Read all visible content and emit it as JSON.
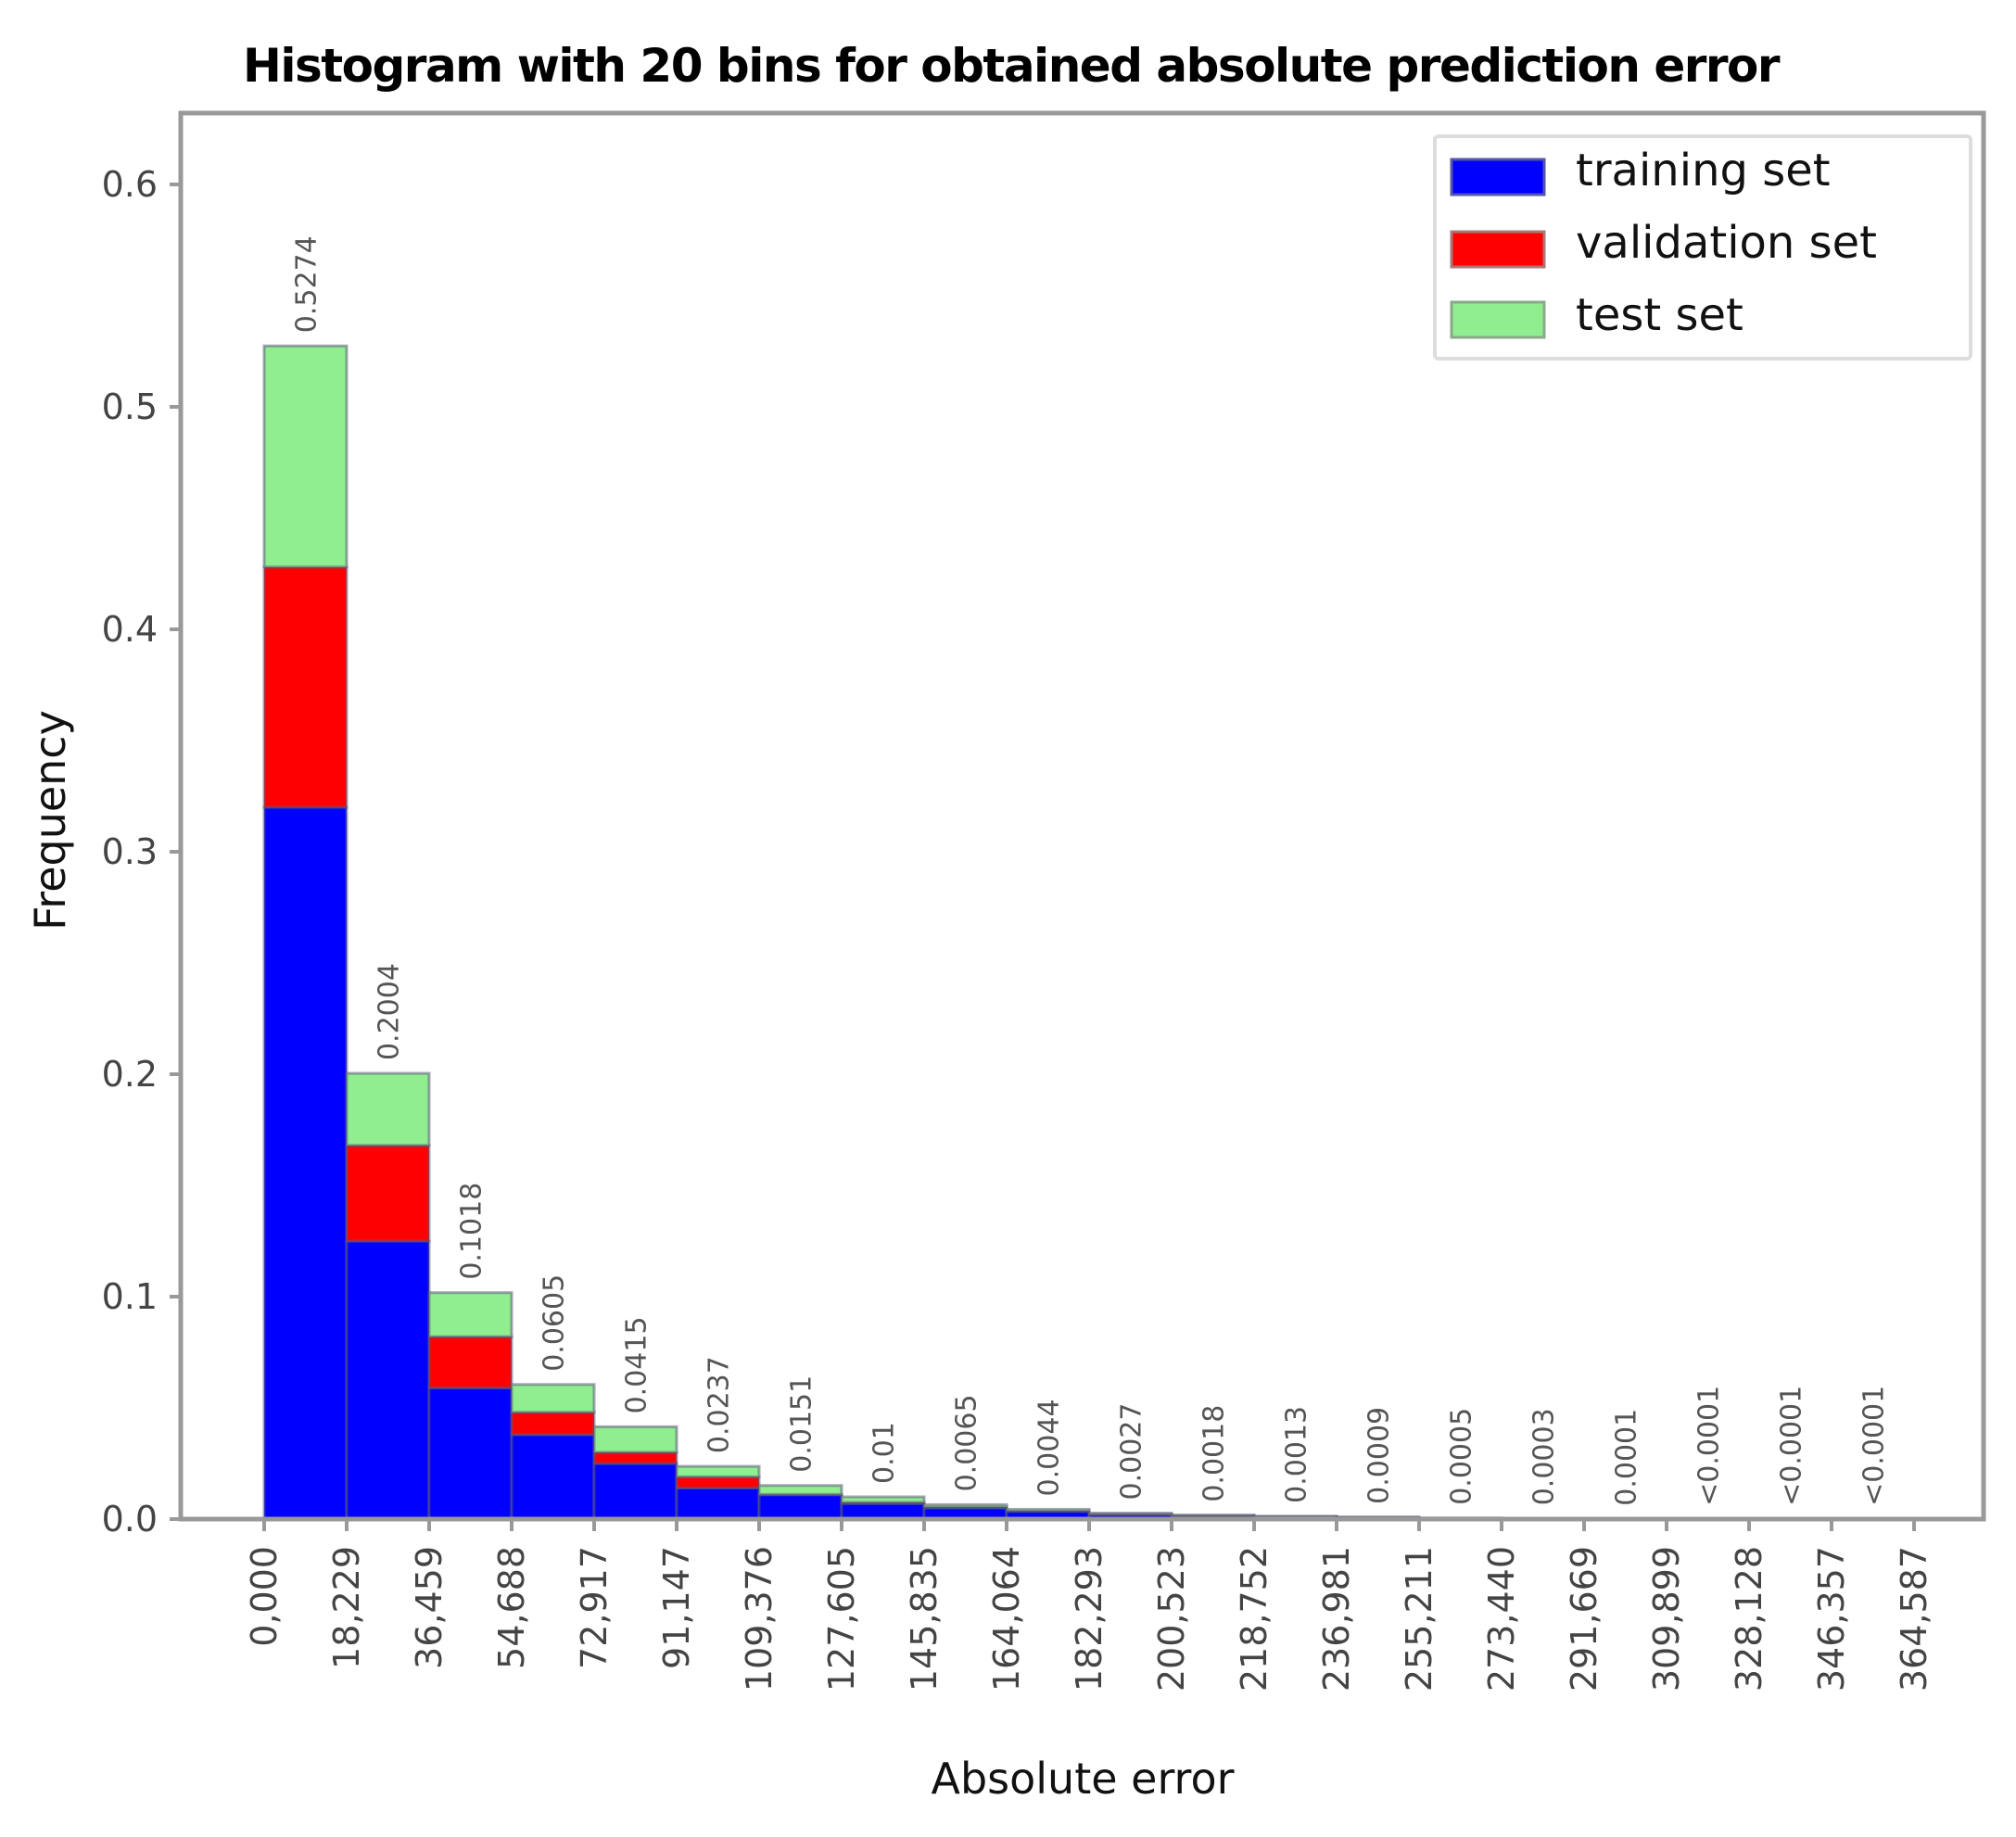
{
  "chart_data": {
    "type": "bar",
    "stacked": true,
    "title": "Histogram with 20 bins for obtained absolute prediction error",
    "xlabel": "Absolute error",
    "ylabel": "Frequency",
    "ylim": [
      0,
      0.63
    ],
    "yticks": [
      "0.0",
      "0.1",
      "0.2",
      "0.3",
      "0.4",
      "0.5",
      "0.6"
    ],
    "ytick_values": [
      0,
      0.1,
      0.2,
      0.3,
      0.4,
      0.5,
      0.6
    ],
    "xtick_labels": [
      "0,000",
      "18,229",
      "36,459",
      "54,688",
      "72,917",
      "91,147",
      "109,376",
      "127,605",
      "145,835",
      "164,064",
      "182,293",
      "200,523",
      "218,752",
      "236,981",
      "255,211",
      "273,440",
      "291,669",
      "309,899",
      "328,128",
      "346,357",
      "364,587"
    ],
    "bin_edges": [
      0,
      18229,
      36459,
      54688,
      72917,
      91147,
      109376,
      127605,
      145835,
      164064,
      182293,
      200523,
      218752,
      236981,
      255211,
      273440,
      291669,
      309899,
      328128,
      346357,
      364587
    ],
    "bar_labels": [
      "0.5274",
      "0.2004",
      "0.1018",
      "0.0605",
      "0.0415",
      "0.0237",
      "0.0151",
      "0.01",
      "0.0065",
      "0.0044",
      "0.0027",
      "0.0018",
      "0.0013",
      "0.0009",
      "0.0005",
      "0.0003",
      "0.0001",
      "<0.0001",
      "<0.0001",
      "<0.0001"
    ],
    "totals": [
      0.5274,
      0.2004,
      0.1018,
      0.0605,
      0.0415,
      0.0237,
      0.0151,
      0.01,
      0.0065,
      0.0044,
      0.0027,
      0.0018,
      0.0013,
      0.0009,
      0.0005,
      0.0003,
      0.0001,
      5e-05,
      5e-05,
      5e-05
    ],
    "series": [
      {
        "name": "training set",
        "color": "#0000ff",
        "values": [
          0.32,
          0.125,
          0.059,
          0.038,
          0.025,
          0.014,
          0.011,
          0.007,
          0.005,
          0.0035,
          0.002,
          0.0014,
          0.001,
          0.0007,
          0.0004,
          0.0002,
          0.0001,
          4e-05,
          4e-05,
          4e-05
        ]
      },
      {
        "name": "validation set",
        "color": "#ff0000",
        "values": [
          0.108,
          0.043,
          0.023,
          0.01,
          0.005,
          0.005,
          0.0001,
          0.0005,
          0.0005,
          0.0003,
          0.0003,
          0.0002,
          0.0001,
          0.0001,
          5e-05,
          5e-05,
          0.0,
          0.0,
          0.0,
          0.0
        ]
      },
      {
        "name": "test set",
        "color": "#90ee90",
        "values": [
          0.0994,
          0.0324,
          0.0198,
          0.0125,
          0.0115,
          0.0047,
          0.004,
          0.0025,
          0.001,
          0.0006,
          0.0004,
          0.0002,
          0.0002,
          0.0001,
          5e-05,
          5e-05,
          0.0,
          1e-05,
          1e-05,
          1e-05
        ]
      }
    ],
    "legend_position": "upper right",
    "grid": false
  },
  "title": "Histogram with 20 bins for obtained absolute prediction error",
  "legend": {
    "items": [
      {
        "label": "training set",
        "color": "#0000ff"
      },
      {
        "label": "validation set",
        "color": "#ff0000"
      },
      {
        "label": "test set",
        "color": "#90ee90"
      }
    ]
  },
  "axes": {
    "xlabel": "Absolute error",
    "ylabel": "Frequency"
  }
}
